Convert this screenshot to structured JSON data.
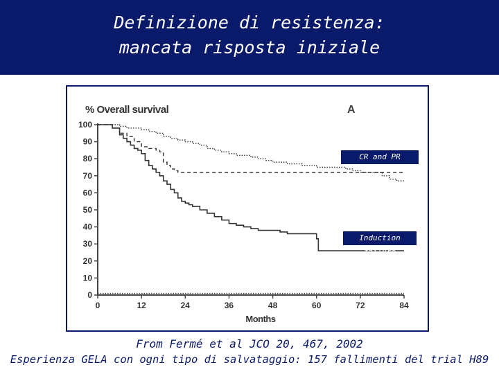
{
  "header": {
    "title_line1": "Definizione di resistenza:",
    "title_line2": "mancata risposta iniziale"
  },
  "caption": {
    "line1": "From Fermé et al JCO 20, 467, 2002",
    "line2": "Esperienza GELA con ogni tipo di salvataggio: 157 fallimenti del trial H89"
  },
  "colors": {
    "header_bg": "#0a1a6b",
    "label_bg": "#0a1a6b",
    "text": "#0a1a6b"
  },
  "chart_data": {
    "type": "line",
    "title": "% Overall survival",
    "panel_label": "A",
    "xlabel": "Months",
    "ylabel": "% Overall survival",
    "xlim": [
      0,
      84
    ],
    "ylim": [
      0,
      100
    ],
    "x_ticks": [
      0,
      12,
      24,
      36,
      48,
      60,
      72,
      84
    ],
    "y_ticks": [
      0,
      10,
      20,
      30,
      40,
      50,
      60,
      70,
      80,
      90,
      100
    ],
    "grid": false,
    "series": [
      {
        "name": "CR and PR",
        "style": "dotted",
        "points": [
          [
            0,
            100
          ],
          [
            4,
            100
          ],
          [
            6,
            99
          ],
          [
            8,
            98
          ],
          [
            10,
            98
          ],
          [
            12,
            97
          ],
          [
            14,
            96
          ],
          [
            16,
            95
          ],
          [
            18,
            93
          ],
          [
            20,
            92
          ],
          [
            22,
            91
          ],
          [
            24,
            90
          ],
          [
            26,
            89
          ],
          [
            28,
            88
          ],
          [
            30,
            86
          ],
          [
            32,
            85
          ],
          [
            34,
            84
          ],
          [
            36,
            83
          ],
          [
            38,
            82
          ],
          [
            40,
            82
          ],
          [
            42,
            81
          ],
          [
            44,
            80
          ],
          [
            46,
            79
          ],
          [
            48,
            78
          ],
          [
            50,
            78
          ],
          [
            52,
            77
          ],
          [
            54,
            77
          ],
          [
            56,
            76
          ],
          [
            58,
            76
          ],
          [
            60,
            75
          ],
          [
            62,
            75
          ],
          [
            64,
            75
          ],
          [
            66,
            75
          ],
          [
            68,
            74
          ],
          [
            70,
            73
          ],
          [
            72,
            72
          ],
          [
            74,
            72
          ],
          [
            76,
            72
          ],
          [
            78,
            70
          ],
          [
            80,
            68
          ],
          [
            82,
            67
          ],
          [
            84,
            67
          ]
        ]
      },
      {
        "name": "",
        "style": "dashed",
        "points": [
          [
            0,
            100
          ],
          [
            4,
            98
          ],
          [
            6,
            95
          ],
          [
            8,
            93
          ],
          [
            10,
            90
          ],
          [
            12,
            87
          ],
          [
            14,
            86
          ],
          [
            16,
            85
          ],
          [
            17,
            84
          ],
          [
            18,
            78
          ],
          [
            19,
            76
          ],
          [
            20,
            74
          ],
          [
            21,
            73
          ],
          [
            22,
            72
          ],
          [
            30,
            72
          ],
          [
            40,
            72
          ],
          [
            50,
            72
          ],
          [
            60,
            72
          ],
          [
            70,
            72
          ],
          [
            76,
            72
          ],
          [
            84,
            72
          ]
        ]
      },
      {
        "name": "Induction failure",
        "style": "solid",
        "points": [
          [
            0,
            100
          ],
          [
            4,
            98
          ],
          [
            6,
            94
          ],
          [
            7,
            92
          ],
          [
            8,
            90
          ],
          [
            9,
            88
          ],
          [
            10,
            86
          ],
          [
            11,
            85
          ],
          [
            12,
            83
          ],
          [
            13,
            79
          ],
          [
            14,
            76
          ],
          [
            15,
            74
          ],
          [
            16,
            72
          ],
          [
            17,
            70
          ],
          [
            18,
            67
          ],
          [
            19,
            65
          ],
          [
            20,
            62
          ],
          [
            21,
            60
          ],
          [
            22,
            57
          ],
          [
            23,
            55
          ],
          [
            24,
            54
          ],
          [
            25,
            53
          ],
          [
            26,
            52
          ],
          [
            28,
            50
          ],
          [
            30,
            48
          ],
          [
            32,
            46
          ],
          [
            34,
            44
          ],
          [
            36,
            42
          ],
          [
            38,
            41
          ],
          [
            40,
            40
          ],
          [
            42,
            39
          ],
          [
            44,
            38
          ],
          [
            48,
            38
          ],
          [
            50,
            37
          ],
          [
            52,
            36
          ],
          [
            56,
            36
          ],
          [
            60,
            33
          ],
          [
            60.5,
            26
          ],
          [
            66,
            26
          ],
          [
            72,
            26
          ],
          [
            84,
            26
          ]
        ]
      },
      {
        "name": "",
        "style": "dotted",
        "points": [
          [
            0,
            1
          ],
          [
            40,
            1
          ],
          [
            60,
            1
          ],
          [
            84,
            1
          ]
        ]
      }
    ],
    "legend_labels": [
      "CR and PR",
      "Induction failure"
    ]
  }
}
